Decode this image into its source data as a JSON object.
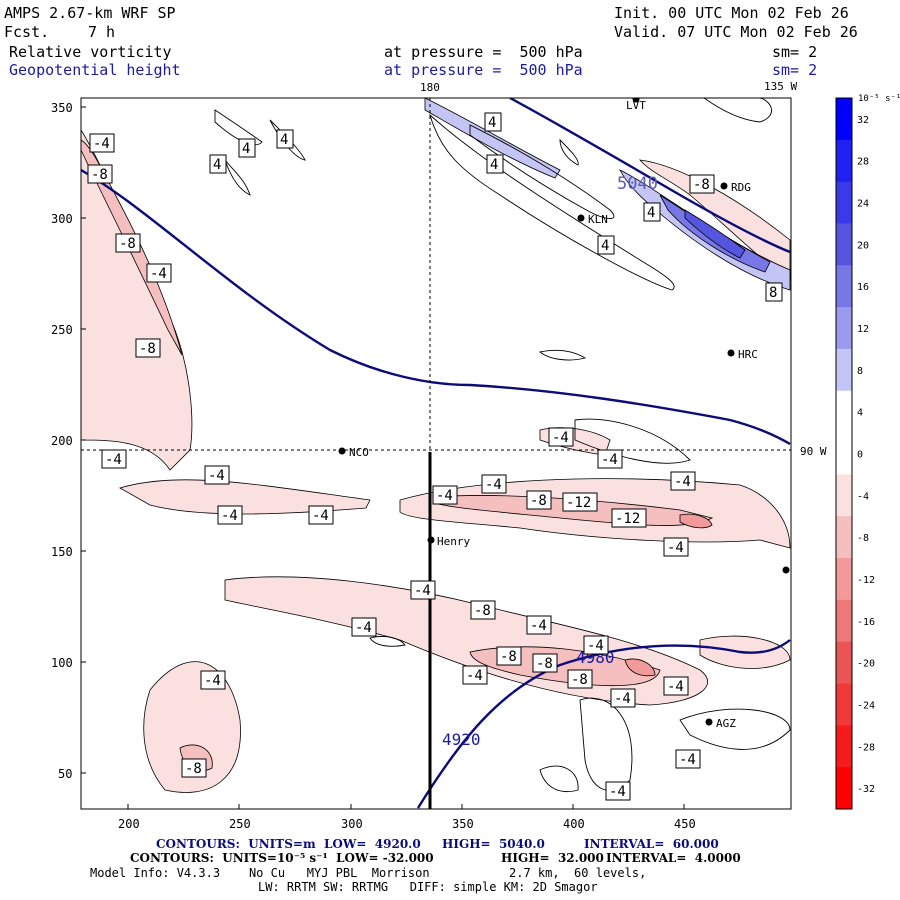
{
  "header": {
    "title": "AMPS 2.67-km WRF SP",
    "fcst_label": "Fcst.",
    "fcst_value": "7 h",
    "init": "Init. 00 UTC Mon 02 Feb 26",
    "valid": "Valid. 07 UTC Mon 02 Feb 26",
    "field1_name": "Relative vorticity",
    "field1_level": "at pressure =  500 hPa",
    "field1_sm": "sm= 2",
    "field2_name": "Geopotential height",
    "field2_level": "at pressure =  500 hPa",
    "field2_sm": "sm= 2"
  },
  "map": {
    "lon_label_top": "180",
    "lon_label_top_right": "135 W",
    "lon_label_right": "90 W",
    "x_ticks": [
      "200",
      "250",
      "300",
      "350",
      "400",
      "450"
    ],
    "y_ticks": [
      "350",
      "300",
      "250",
      "200",
      "150",
      "100",
      "50"
    ],
    "stations": [
      "LVT",
      "RDG",
      "KLN",
      "HRC",
      "NCO",
      "Henry",
      "AGZ"
    ],
    "height_labels": [
      "5040",
      "4980",
      "4920"
    ],
    "vort_labels": [
      "-4",
      "-8",
      "-12",
      "4",
      "8"
    ]
  },
  "colorbar": {
    "unit": "10⁻⁵ s⁻¹",
    "ticks": [
      "32",
      "28",
      "24",
      "20",
      "16",
      "12",
      "8",
      "4",
      "0",
      "-4",
      "-8",
      "-12",
      "-16",
      "-20",
      "-24",
      "-28",
      "-32"
    ],
    "colors": [
      "#0000ff",
      "#2020f2",
      "#3a3ae8",
      "#5555e0",
      "#7777e6",
      "#9a9aee",
      "#c4c4f5",
      "#ffffff",
      "#ffffff",
      "#fbe0e0",
      "#f6bfbf",
      "#f29a9a",
      "#ee7777",
      "#ea5555",
      "#f03a3a",
      "#f71a1a",
      "#ff0000"
    ]
  },
  "footer": {
    "line1_left": "CONTOURS:  UNITS=m  LOW=  4920.0",
    "line1_mid": "HIGH=  5040.0",
    "line1_right": "INTERVAL=  60.000",
    "line2": "CONTOURS:  UNITS=10⁻⁵ s⁻¹  LOW= -32.000",
    "line2_mid": "HIGH=  32.000",
    "line2_right": "INTERVAL=  4.0000",
    "line3": "Model Info: V4.3.3    No Cu   MYJ PBL  Morrison           2.7 km,  60 levels,",
    "line4": "LW: RRTM SW: RRTMG   DIFF: simple KM: 2D Smagor"
  }
}
